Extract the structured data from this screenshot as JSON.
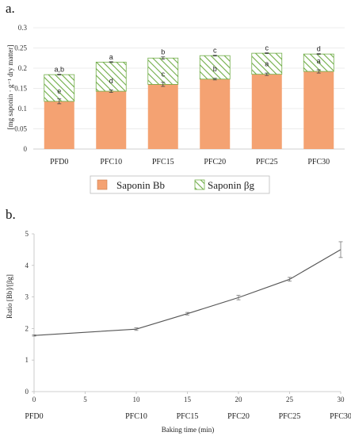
{
  "chart_data": [
    {
      "panel_label": "a.",
      "type": "bar",
      "stacked": true,
      "categories": [
        "PFD0",
        "PFC10",
        "PFC15",
        "PFC20",
        "PFC25",
        "PFC30"
      ],
      "ylabel": "[mg saponin · g⁻¹ dry matter]",
      "ylim": [
        0,
        0.3
      ],
      "yticks": [
        "0",
        "0.05",
        "0.1",
        "0.15",
        "0.2",
        "0.25",
        "0.3"
      ],
      "legend_position": "bottom",
      "series": [
        {
          "name": "Saponin Bb",
          "color": "#f4a272",
          "pattern": "solid",
          "values": [
            0.118,
            0.143,
            0.16,
            0.173,
            0.185,
            0.192
          ],
          "errors": [
            0.006,
            0.003,
            0.005,
            0.002,
            0.003,
            0.004
          ],
          "letters": [
            "e",
            "d",
            "c",
            "b",
            "a",
            "a"
          ]
        },
        {
          "name": "Saponin βg",
          "color": "#70ad47",
          "pattern": "hatched",
          "values": [
            0.066,
            0.072,
            0.065,
            0.058,
            0.052,
            0.043
          ],
          "errors": [
            0.001,
            0.001,
            0.003,
            0.001,
            0.001,
            0.001
          ],
          "letters": [
            "a,b",
            "a",
            "b",
            "c",
            "c",
            "d"
          ]
        }
      ]
    },
    {
      "panel_label": "b.",
      "type": "line",
      "xlabel": "Baking time (min)",
      "ylabel": "Ratio [Bb]/[βg]",
      "xlim": [
        0,
        30
      ],
      "ylim": [
        0,
        5
      ],
      "xticks": [
        "0",
        "5",
        "10",
        "15",
        "20",
        "25",
        "30"
      ],
      "yticks": [
        "0",
        "1",
        "2",
        "3",
        "4",
        "5"
      ],
      "sample_labels": [
        "PFD0",
        "PFC10",
        "PFC15",
        "PFC20",
        "PFC25",
        "PFC30"
      ],
      "series": [
        {
          "color": "#555555",
          "x": [
            0,
            10,
            15,
            20,
            25,
            30
          ],
          "y": [
            1.78,
            1.98,
            2.47,
            2.98,
            3.56,
            4.5
          ],
          "errors": [
            0.02,
            0.04,
            0.04,
            0.07,
            0.06,
            0.25
          ]
        }
      ]
    }
  ]
}
